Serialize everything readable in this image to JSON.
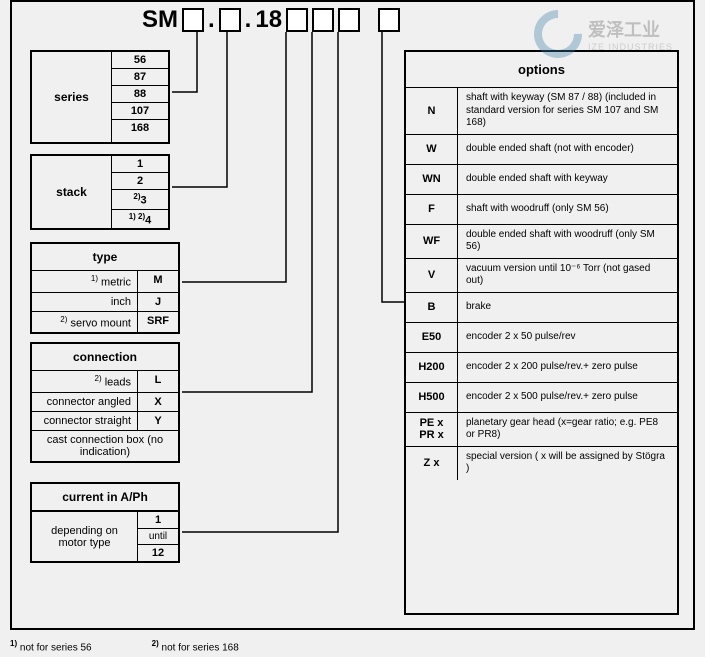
{
  "title_prefix": "SM",
  "title_mid": "18",
  "logo_main": "爱泽工业",
  "logo_sub": "IZE INDUSTRIES",
  "series": {
    "title": "series",
    "values": [
      "56",
      "87",
      "88",
      "107",
      "168"
    ]
  },
  "stack": {
    "title": "stack",
    "values": [
      "1",
      "2",
      "3",
      "4"
    ],
    "sup": [
      "",
      "",
      "2)",
      "1) 2)"
    ]
  },
  "type": {
    "title": "type",
    "rows": [
      {
        "label": "metric",
        "sup": "1)",
        "val": "M"
      },
      {
        "label": "inch",
        "sup": "",
        "val": "J"
      },
      {
        "label": "servo mount",
        "sup": "2)",
        "val": "SRF"
      }
    ]
  },
  "connection": {
    "title": "connection",
    "rows": [
      {
        "label": "leads",
        "sup": "2)",
        "val": "L"
      },
      {
        "label": "connector angled",
        "sup": "",
        "val": "X"
      },
      {
        "label": "connector straight",
        "sup": "",
        "val": "Y"
      },
      {
        "label": "cast connection box (no indication)",
        "sup": "",
        "val": ""
      }
    ]
  },
  "current": {
    "title": "current in A/Ph",
    "label": "depending on motor type",
    "v1": "1",
    "mid": "until",
    "v2": "12"
  },
  "options": {
    "title": "options",
    "rows": [
      {
        "code": "N",
        "desc": "shaft with keyway (SM 87 / 88) (included in standard version for series SM 107 and SM 168)"
      },
      {
        "code": "W",
        "desc": "double ended shaft (not with encoder)"
      },
      {
        "code": "WN",
        "desc": "double ended shaft with keyway"
      },
      {
        "code": "F",
        "desc": "shaft with woodruff (only SM 56)"
      },
      {
        "code": "WF",
        "desc": "double ended shaft with woodruff (only SM 56)"
      },
      {
        "code": "V",
        "desc": "vacuum version until 10⁻⁶ Torr (not gased out)"
      },
      {
        "code": "B",
        "desc": "brake"
      },
      {
        "code": "E50",
        "desc": "encoder 2 x 50 pulse/rev"
      },
      {
        "code": "H200",
        "desc": "encoder 2 x 200 pulse/rev.+ zero pulse"
      },
      {
        "code": "H500",
        "desc": "encoder 2 x 500 pulse/rev.+ zero pulse"
      },
      {
        "code": "PE x\nPR x",
        "desc": "planetary gear head (x=gear ratio; e.g. PE8 or PR8)"
      },
      {
        "code": "Z x",
        "desc": "special version ( x will be assigned by Stögra )"
      }
    ]
  },
  "footnote1": "not for series 56",
  "footnote2": "not for series 168",
  "colors": {
    "border": "#000000",
    "bg": "#f0f0f0",
    "logo": "#3a7ca5"
  }
}
